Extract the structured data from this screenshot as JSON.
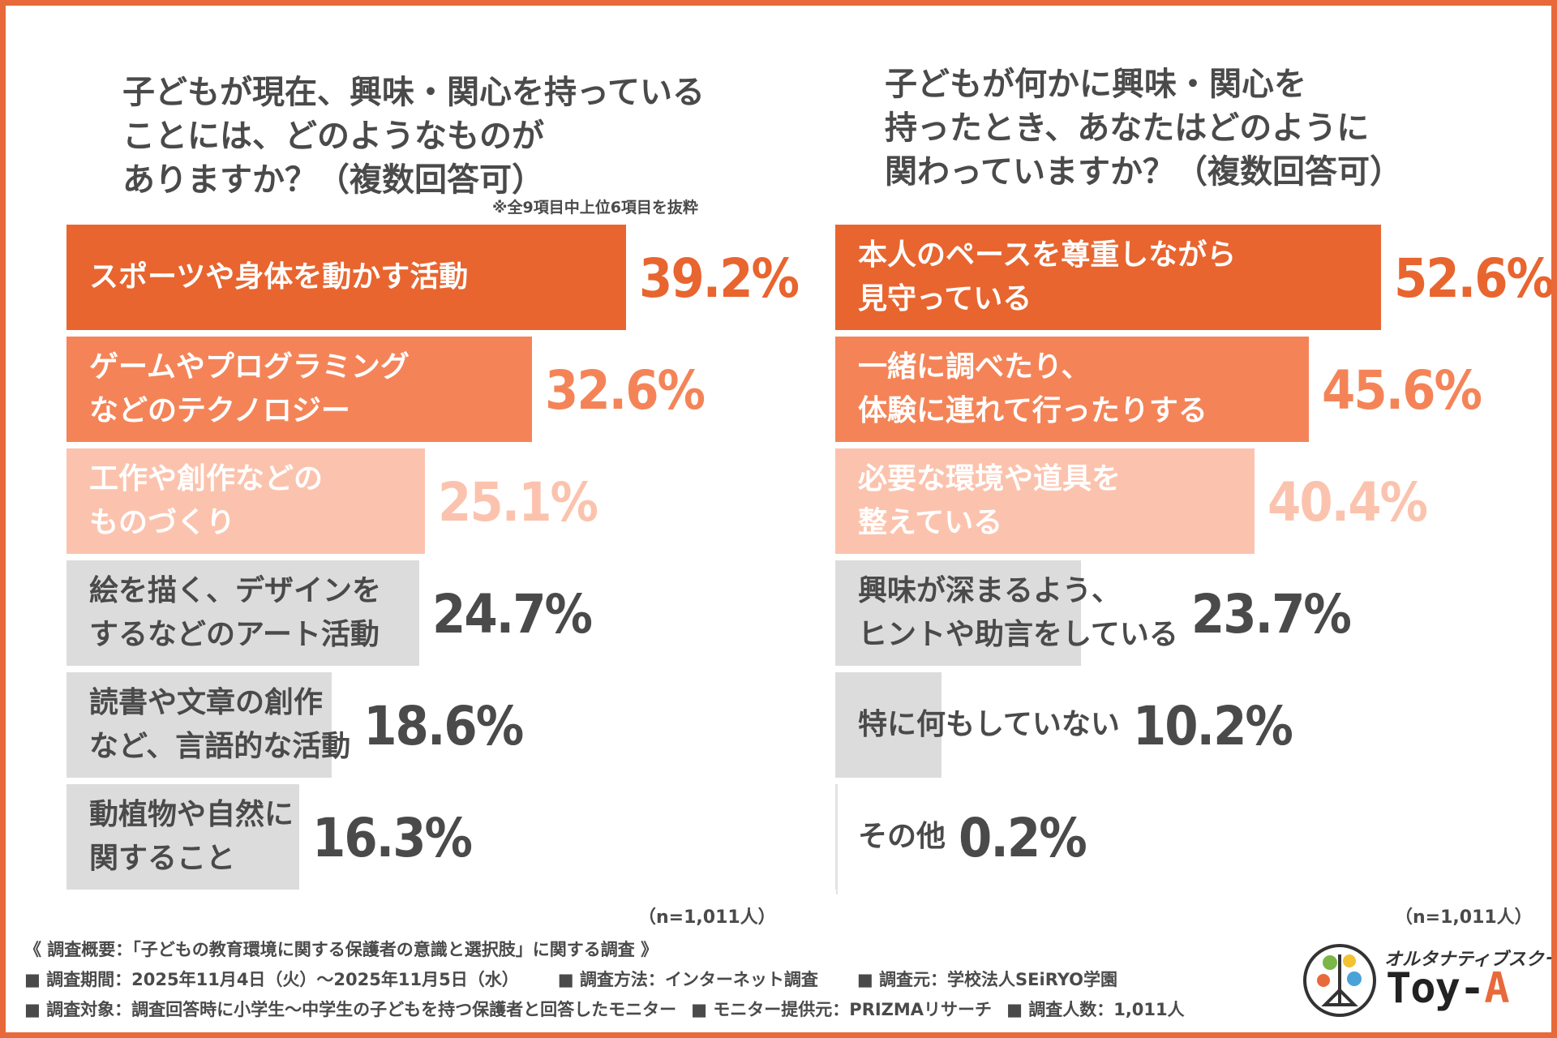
{
  "palette": {
    "dark_orange": "#e8652f",
    "mid_orange": "#f48458",
    "light_orange": "#fbc3ae",
    "gray_bar": "#dcdcdc",
    "dark_text": "#4a4a4a"
  },
  "left": {
    "title_lines": [
      "子どもが現在、興味・関心を持っている",
      "ことには、どのようなものが",
      "ありますか？（複数回答可）"
    ],
    "note": "※全9項目中上位6項目を抜粋",
    "n_label": "（n=1,011人）"
  },
  "right": {
    "title_lines": [
      "子どもが何かに興味・関心を",
      "持ったとき、あなたはどのように",
      "関わっていますか？（複数回答可）"
    ],
    "n_label": "（n=1,011人）"
  },
  "chart_data": [
    {
      "type": "bar",
      "orientation": "horizontal",
      "unit": "%",
      "xlim": [
        0,
        80
      ],
      "title": "子どもが現在、興味・関心を持っていることには、どのようなものがありますか？（複数回答可）",
      "categories": [
        [
          "スポーツや身体を動かす活動"
        ],
        [
          "ゲームやプログラミング",
          "などのテクノロジー"
        ],
        [
          "工作や創作などの",
          "ものづくり"
        ],
        [
          "絵を描く、デザインを",
          "するなどのアート活動"
        ],
        [
          "読書や文章の創作",
          "など、言語的な活動"
        ],
        [
          "動植物や自然に",
          "関すること"
        ]
      ],
      "values": [
        39.2,
        32.6,
        25.1,
        24.7,
        18.6,
        16.3
      ],
      "value_labels": [
        "39.2%",
        "32.6%",
        "25.1%",
        "24.7%",
        "18.6%",
        "16.3%"
      ],
      "bar_colors": [
        "#e8652f",
        "#f48458",
        "#fbc3ae",
        "#dcdcdc",
        "#dcdcdc",
        "#dcdcdc"
      ],
      "label_colors": [
        "#ffffff",
        "#ffffff",
        "#ffffff",
        "#4a4a4a",
        "#4a4a4a",
        "#4a4a4a"
      ],
      "value_colors": [
        "#e8652f",
        "#f48458",
        "#fbc3ae",
        "#4a4a4a",
        "#4a4a4a",
        "#4a4a4a"
      ]
    },
    {
      "type": "bar",
      "orientation": "horizontal",
      "unit": "%",
      "xlim": [
        0,
        80
      ],
      "title": "子どもが何かに興味・関心を持ったとき、あなたはどのように関わっていますか？（複数回答可）",
      "categories": [
        [
          "本人のペースを尊重しながら",
          "見守っている"
        ],
        [
          "一緒に調べたり、",
          "体験に連れて行ったりする"
        ],
        [
          "必要な環境や道具を",
          "整えている"
        ],
        [
          "興味が深まるよう、",
          "ヒントや助言をしている"
        ],
        [
          "特に何もしていない"
        ],
        [
          "その他"
        ]
      ],
      "values": [
        52.6,
        45.6,
        40.4,
        23.7,
        10.2,
        0.2
      ],
      "value_labels": [
        "52.6%",
        "45.6%",
        "40.4%",
        "23.7%",
        "10.2%",
        "0.2%"
      ],
      "bar_colors": [
        "#e8652f",
        "#f48458",
        "#fbc3ae",
        "#dcdcdc",
        "#dcdcdc",
        "#dcdcdc"
      ],
      "label_colors": [
        "#ffffff",
        "#ffffff",
        "#ffffff",
        "#4a4a4a",
        "#4a4a4a",
        "#4a4a4a"
      ],
      "value_colors": [
        "#e8652f",
        "#f48458",
        "#fbc3ae",
        "#4a4a4a",
        "#4a4a4a",
        "#4a4a4a"
      ]
    }
  ],
  "footer": {
    "heading": "《 調査概要：「子どもの教育環境に関する保護者の意識と選択肢」に関する調査 》",
    "row1": [
      "■ 調査期間：2025年11月4日（火）～2025年11月5日（水）",
      "■ 調査方法：インターネット調査",
      "■ 調査元：学校法人SEiRYO学園"
    ],
    "row2": [
      "■ 調査対象：調査回答時に小学生～中学生の子どもを持つ保護者と回答したモニター",
      "■ モニター提供元：PRIZMAリサーチ",
      "■ 調査人数：1,011人"
    ]
  },
  "logo": {
    "tagline": "オルタナティブスクール",
    "name_main": "Toy-",
    "name_accent": "A"
  }
}
